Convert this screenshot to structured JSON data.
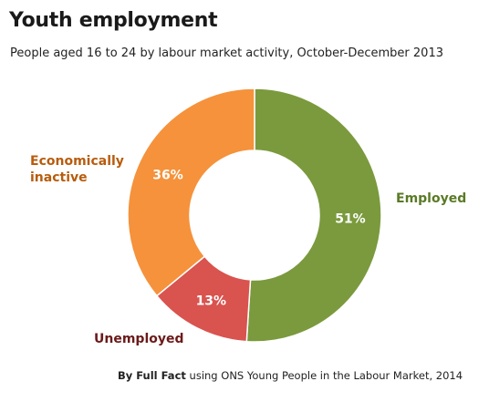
{
  "title": "Youth employment",
  "subtitle": "People aged 16 to 24 by labour market activity, October-December 2013",
  "chart_data": {
    "type": "pie",
    "variant": "donut",
    "title": "Youth employment",
    "subtitle": "People aged 16 to 24 by labour market activity, October-December 2013",
    "slices": [
      {
        "label": "Employed",
        "value": 51,
        "value_label": "51%",
        "color": "#7a9a3d",
        "label_color": "#5a7a26"
      },
      {
        "label": "Unemployed",
        "value": 13,
        "value_label": "13%",
        "color": "#d9534f",
        "label_color": "#6b1a1a"
      },
      {
        "label": "Economically\ninactive",
        "value": 36,
        "value_label": "36%",
        "color": "#f5923b",
        "label_color": "#b85c0d"
      }
    ]
  },
  "source": {
    "by": "By Full Fact",
    "text": " using ONS Young People in the Labour Market, 2014"
  }
}
